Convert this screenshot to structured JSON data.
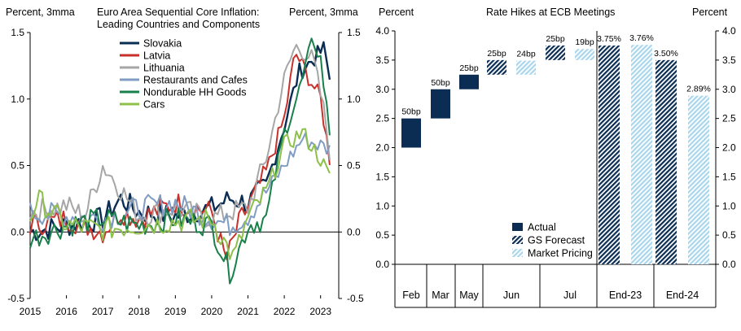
{
  "chart_data": [
    {
      "type": "line",
      "title": "Euro Area Sequential Core Inflation:",
      "subtitle": "Leading Countries and Components",
      "ylabel_left": "Percent, 3mma",
      "ylabel_right": "Percent, 3mma",
      "ylim": [
        -0.5,
        1.5
      ],
      "yticks": [
        "-0.5",
        "0.0",
        "0.5",
        "1.0",
        "1.5"
      ],
      "ytick_values": [
        -0.5,
        0.0,
        0.5,
        1.0,
        1.5
      ],
      "xlim": [
        2015.0,
        2023.5
      ],
      "xticks": [
        "2015",
        "2016",
        "2017",
        "2018",
        "2019",
        "2020",
        "2021",
        "2022",
        "2023"
      ],
      "series": [
        {
          "name": "Slovakia",
          "color": "#0b2d53",
          "end_year": 2023.25,
          "anchors": [
            [
              2015,
              0.0
            ],
            [
              2016,
              0.05
            ],
            [
              2017,
              0.1
            ],
            [
              2017.5,
              0.25
            ],
            [
              2018,
              0.15
            ],
            [
              2019,
              0.12
            ],
            [
              2020,
              0.18
            ],
            [
              2020.5,
              0.25
            ],
            [
              2021,
              0.22
            ],
            [
              2021.5,
              0.35
            ],
            [
              2022,
              0.8
            ],
            [
              2022.4,
              1.2
            ],
            [
              2022.8,
              1.3
            ],
            [
              2023.1,
              1.38
            ],
            [
              2023.25,
              1.15
            ]
          ]
        },
        {
          "name": "Latvia",
          "color": "#c8312b",
          "end_year": 2023.25,
          "anchors": [
            [
              2015,
              0.05
            ],
            [
              2016,
              0.1
            ],
            [
              2017,
              0.0
            ],
            [
              2017.5,
              0.15
            ],
            [
              2018,
              0.1
            ],
            [
              2019,
              0.22
            ],
            [
              2020,
              0.15
            ],
            [
              2020.4,
              -0.22
            ],
            [
              2020.8,
              0.1
            ],
            [
              2021,
              0.18
            ],
            [
              2021.5,
              0.45
            ],
            [
              2022,
              0.85
            ],
            [
              2022.3,
              1.35
            ],
            [
              2022.7,
              1.15
            ],
            [
              2023.0,
              1.0
            ],
            [
              2023.25,
              0.55
            ]
          ]
        },
        {
          "name": "Lithuania",
          "color": "#a6a6a6",
          "end_year": 2023.25,
          "anchors": [
            [
              2015,
              0.15
            ],
            [
              2016,
              0.2
            ],
            [
              2016.5,
              0.12
            ],
            [
              2017,
              0.5
            ],
            [
              2017.3,
              0.4
            ],
            [
              2018,
              0.12
            ],
            [
              2019,
              0.18
            ],
            [
              2020,
              0.1
            ],
            [
              2020.5,
              0.15
            ],
            [
              2021,
              0.18
            ],
            [
              2021.5,
              0.55
            ],
            [
              2022,
              1.15
            ],
            [
              2022.3,
              1.4
            ],
            [
              2022.8,
              1.3
            ],
            [
              2023.1,
              0.9
            ],
            [
              2023.25,
              0.6
            ]
          ]
        },
        {
          "name": "Restaurants and Cafes",
          "color": "#7f9cc3",
          "end_year": 2023.25,
          "anchors": [
            [
              2015,
              0.15
            ],
            [
              2016,
              0.12
            ],
            [
              2017,
              0.1
            ],
            [
              2018,
              0.18
            ],
            [
              2019,
              0.22
            ],
            [
              2020,
              0.1
            ],
            [
              2020.5,
              0.05
            ],
            [
              2021,
              0.12
            ],
            [
              2021.5,
              0.3
            ],
            [
              2022,
              0.5
            ],
            [
              2022.5,
              0.7
            ],
            [
              2023.0,
              0.65
            ],
            [
              2023.25,
              0.62
            ]
          ]
        },
        {
          "name": "Nondurable HH Goods",
          "color": "#18804a",
          "end_year": 2023.25,
          "anchors": [
            [
              2015,
              -0.05
            ],
            [
              2016,
              0.05
            ],
            [
              2017,
              0.1
            ],
            [
              2018,
              0.05
            ],
            [
              2019,
              0.1
            ],
            [
              2020,
              0.05
            ],
            [
              2020.5,
              -0.3
            ],
            [
              2020.8,
              -0.1
            ],
            [
              2021,
              0.05
            ],
            [
              2021.5,
              0.1
            ],
            [
              2022,
              0.75
            ],
            [
              2022.4,
              1.05
            ],
            [
              2022.8,
              1.45
            ],
            [
              2023.0,
              1.3
            ],
            [
              2023.25,
              0.75
            ]
          ]
        },
        {
          "name": "Cars",
          "color": "#8cc04a",
          "end_year": 2023.25,
          "anchors": [
            [
              2015,
              0.1
            ],
            [
              2015.2,
              0.25
            ],
            [
              2016,
              0.05
            ],
            [
              2017,
              0.02
            ],
            [
              2018,
              0.05
            ],
            [
              2019,
              0.08
            ],
            [
              2020,
              0.1
            ],
            [
              2020.6,
              -0.2
            ],
            [
              2021,
              0.1
            ],
            [
              2021.5,
              0.3
            ],
            [
              2022,
              0.65
            ],
            [
              2022.5,
              0.75
            ],
            [
              2023.0,
              0.55
            ],
            [
              2023.25,
              0.4
            ]
          ]
        }
      ]
    },
    {
      "type": "bar",
      "title": "Rate Hikes at ECB Meetings",
      "ylabel_left": "Percent",
      "ylabel_right": "Percent",
      "ylim": [
        0.0,
        4.0
      ],
      "yticks": [
        "0.0",
        "0.5",
        "1.0",
        "1.5",
        "2.0",
        "2.5",
        "3.0",
        "3.5",
        "4.0"
      ],
      "ytick_values": [
        0.0,
        0.5,
        1.0,
        1.5,
        2.0,
        2.5,
        3.0,
        3.5,
        4.0
      ],
      "categories": [
        "Feb",
        "Mar",
        "May",
        "Jun",
        "Jul",
        "End-23",
        "End-24"
      ],
      "legend": [
        "Actual",
        "GS Forecast",
        "Market Pricing"
      ],
      "bars": [
        {
          "category": "Feb",
          "series": "Actual",
          "base": 2.0,
          "top": 2.5,
          "label": "50bp"
        },
        {
          "category": "Mar",
          "series": "Actual",
          "base": 2.5,
          "top": 3.0,
          "label": "50bp"
        },
        {
          "category": "May",
          "series": "Actual",
          "base": 3.0,
          "top": 3.25,
          "label": "25bp"
        },
        {
          "category": "Jun",
          "series": "GS Forecast",
          "base": 3.25,
          "top": 3.5,
          "label": "25bp"
        },
        {
          "category": "Jun",
          "series": "Market Pricing",
          "base": 3.25,
          "top": 3.49,
          "label": "24bp"
        },
        {
          "category": "Jul",
          "series": "GS Forecast",
          "base": 3.5,
          "top": 3.75,
          "label": "25bp"
        },
        {
          "category": "Jul",
          "series": "Market Pricing",
          "base": 3.5,
          "top": 3.69,
          "label": "19bp"
        },
        {
          "category": "End-23",
          "series": "GS Forecast",
          "base": 0.0,
          "top": 3.75,
          "label": "3.75%"
        },
        {
          "category": "End-23",
          "series": "Market Pricing",
          "base": 0.0,
          "top": 3.76,
          "label": "3.76%"
        },
        {
          "category": "End-24",
          "series": "GS Forecast",
          "base": 0.0,
          "top": 3.5,
          "label": "3.50%"
        },
        {
          "category": "End-24",
          "series": "Market Pricing",
          "base": 0.0,
          "top": 2.89,
          "label": "2.89%"
        }
      ]
    }
  ]
}
